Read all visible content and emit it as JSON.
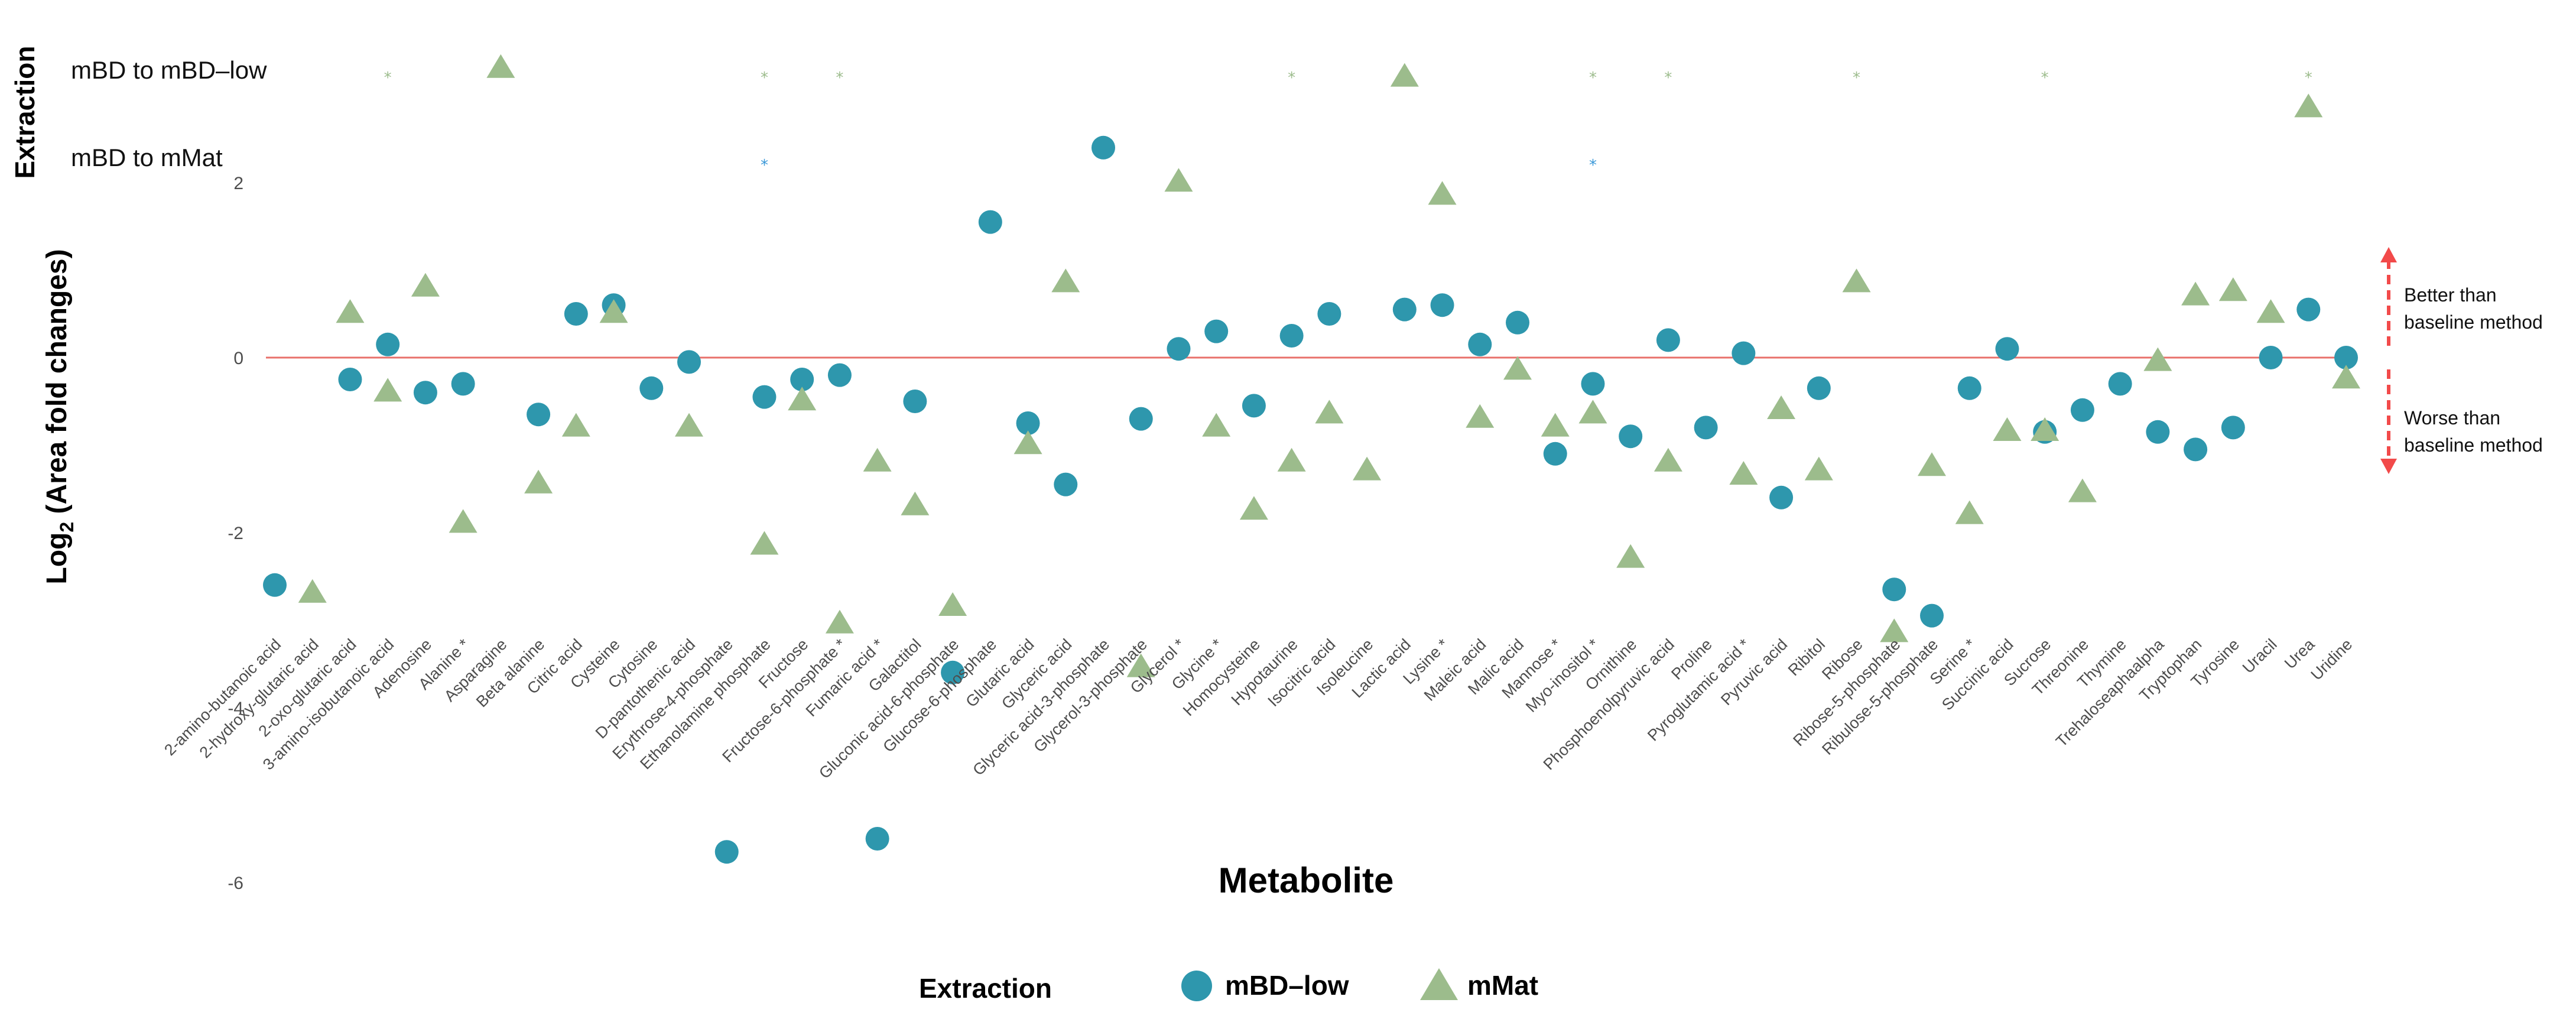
{
  "chart_data": {
    "type": "scatter",
    "xlabel": "Metabolite",
    "ylabel_main": "Log",
    "ylabel_sub": "2",
    "ylabel_rest": " (Area fold changes)",
    "significance_axis_label": "Extraction",
    "ylim": [
      -6.4,
      3.6
    ],
    "yticks": [
      -6,
      -4,
      -2,
      0,
      2
    ],
    "ytick_labels": [
      "-6",
      "-4",
      "-2",
      "0",
      "2"
    ],
    "baseline": 0,
    "colors": {
      "mBD-low": "#2e97ad",
      "mMat": "#9cbc8c",
      "baseline": "#e8716b",
      "arrow": "#f24a4a",
      "sig_low": "#9cbc8c",
      "sig_mat": "#3a98d8"
    },
    "categories": [
      "2-amino-butanoic acid",
      "2-hydroxy-glutaric acid",
      "2-oxo-glutaric acid",
      "3-amino-isobutanoic acid",
      "Adenosine",
      "Alanine *",
      "Asparagine",
      "Beta alanine",
      "Citric acid",
      "Cysteine",
      "Cytosine",
      "D-pantothenic acid",
      "Erythrose-4-phosphate",
      "Ethanolamine phosphate",
      "Fructose",
      "Fructose-6-phosphate *",
      "Fumaric acid *",
      "Galactitol",
      "Gluconic acid-6-phosphate",
      "Glucose-6-phosphate",
      "Glutaric acid",
      "Glyceric acid",
      "Glyceric acid-3-phosphate",
      "Glycerol-3-phosphate",
      "Glycerol *",
      "Glycine *",
      "Homocysteine",
      "Hypotaurine",
      "Isocitric acid",
      "Isoleucine",
      "Lactic acid",
      "Lysine *",
      "Maleic acid",
      "Malic acid",
      "Mannose *",
      "Myo-inositol *",
      "Ornithine",
      "Phosphoenolpyruvic acid",
      "Proline",
      "Pyroglutamic acid *",
      "Pyruvic acid",
      "Ribitol",
      "Ribose",
      "Ribose-5-phosphate",
      "Ribulose-5-phosphate",
      "Serine *",
      "Succinic acid",
      "Sucrose",
      "Threonine",
      "Thymine",
      "Trehaloseaphaalpha",
      "Tryptophan",
      "Tyrosine",
      "Uracil",
      "Urea",
      "Uridine"
    ],
    "series": [
      {
        "name": "mBD–low",
        "marker": "circle",
        "values": [
          -2.6,
          null,
          -0.25,
          0.15,
          -0.4,
          -0.3,
          null,
          -0.65,
          0.5,
          0.6,
          -0.35,
          -0.05,
          -5.65,
          -0.45,
          -0.25,
          -0.2,
          -5.5,
          -0.5,
          -3.6,
          1.55,
          -0.75,
          -1.45,
          2.4,
          -0.7,
          0.1,
          0.3,
          -0.55,
          0.25,
          0.5,
          null,
          0.55,
          0.6,
          0.15,
          0.4,
          -1.1,
          -0.3,
          -0.9,
          0.2,
          -0.8,
          0.05,
          -1.6,
          -0.35,
          null,
          -2.65,
          -2.95,
          -0.35,
          0.1,
          -0.85,
          -0.6,
          -0.3,
          -0.85,
          -1.05,
          -0.8,
          0.0,
          0.55,
          0.0
        ]
      },
      {
        "name": "mMat",
        "marker": "triangle",
        "values": [
          null,
          -2.7,
          0.5,
          -0.4,
          0.8,
          -1.9,
          3.3,
          -1.45,
          -0.8,
          0.5,
          null,
          -0.8,
          null,
          -2.15,
          -0.5,
          -3.05,
          -1.2,
          -1.7,
          -2.85,
          null,
          -1.0,
          0.85,
          null,
          -3.55,
          2.0,
          -0.8,
          -1.75,
          -1.2,
          -0.65,
          -1.3,
          3.2,
          1.85,
          -0.7,
          -0.15,
          -0.8,
          -0.65,
          -2.3,
          -1.2,
          null,
          -1.35,
          -0.6,
          -1.3,
          0.85,
          -3.15,
          -1.25,
          -1.8,
          -0.85,
          -0.85,
          -1.55,
          null,
          -0.05,
          0.7,
          0.75,
          0.5,
          2.85,
          -0.25
        ]
      }
    ],
    "significance_rows": [
      {
        "label": "mBD to mBD–low",
        "symbol": "*",
        "color_key": "sig_low",
        "categories": [
          "3-amino-isobutanoic acid",
          "Ethanolamine phosphate",
          "Fructose-6-phosphate *",
          "Hypotaurine",
          "Myo-inositol *",
          "Phosphoenolpyruvic acid",
          "Ribose",
          "Sucrose",
          "Urea"
        ]
      },
      {
        "label": "mBD to mMat",
        "symbol": "*",
        "color_key": "sig_mat",
        "categories": [
          "Ethanolamine phosphate",
          "Myo-inositol *"
        ]
      }
    ],
    "annotations": {
      "better": [
        "Better than",
        "baseline method"
      ],
      "worse": [
        "Worse than",
        "baseline method"
      ]
    },
    "legend": {
      "title": "Extraction",
      "position": "bottom",
      "items": [
        {
          "label": "mBD–low",
          "marker": "circle"
        },
        {
          "label": "mMat",
          "marker": "triangle"
        }
      ]
    }
  }
}
